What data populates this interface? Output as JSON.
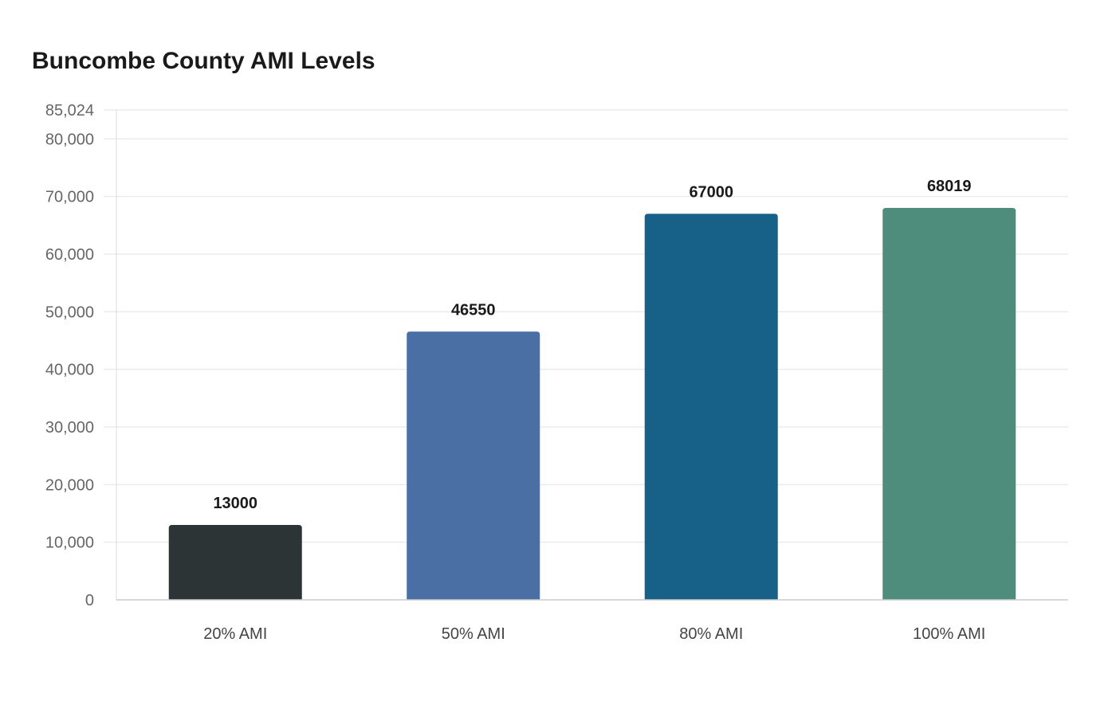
{
  "chart_data": {
    "type": "bar",
    "title": "Buncombe County AMI Levels",
    "xlabel": "",
    "ylabel": "",
    "categories": [
      "20% AMI",
      "50% AMI",
      "80% AMI",
      "100% AMI"
    ],
    "values": [
      13000,
      46550,
      67000,
      68019
    ],
    "data_labels": [
      "13000",
      "46550",
      "67000",
      "68019"
    ],
    "colors": [
      "#2d3436",
      "#4a6fa5",
      "#176087",
      "#4e8d7c"
    ],
    "ylim": [
      0,
      85024
    ],
    "yticks": [
      0,
      10000,
      20000,
      30000,
      40000,
      50000,
      60000,
      70000,
      80000,
      85024
    ],
    "ytick_labels": [
      "0",
      "10,000",
      "20,000",
      "30,000",
      "40,000",
      "50,000",
      "60,000",
      "70,000",
      "80,000",
      "85,024"
    ],
    "grid": true,
    "legend": "none"
  }
}
